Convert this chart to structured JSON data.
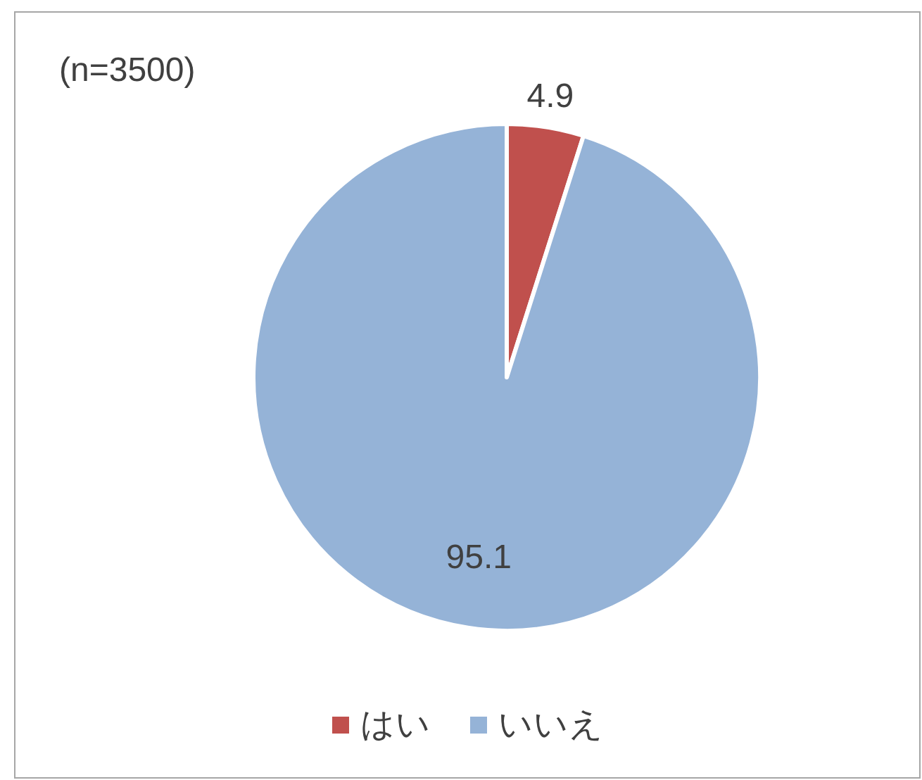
{
  "chart_data": {
    "type": "pie",
    "categories": [
      "はい",
      "いいえ"
    ],
    "values": [
      4.9,
      95.1
    ],
    "colors": [
      "#c0504d",
      "#95b3d7"
    ],
    "data_labels": true,
    "legend": "bottom",
    "annotations": [
      "(n=3500)"
    ]
  }
}
